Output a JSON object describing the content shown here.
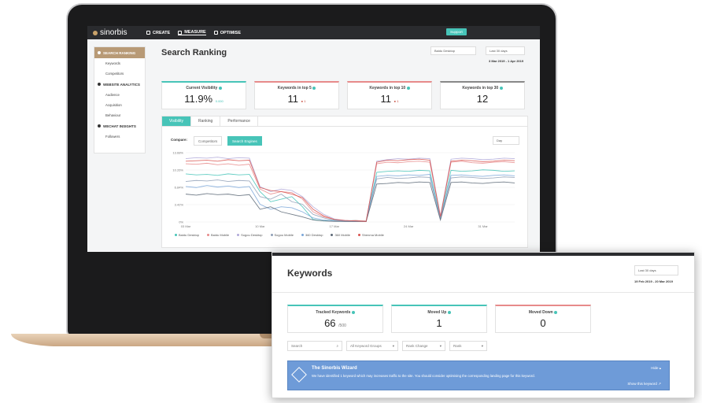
{
  "app": {
    "logo": "sinorbis",
    "nav": [
      {
        "label": "CREATE"
      },
      {
        "label": "MEASURE"
      },
      {
        "label": "OPTIMISE"
      }
    ],
    "support": "Support"
  },
  "sidebar": {
    "sections": [
      {
        "label": "SEARCH RANKING",
        "items": [
          "Keywords",
          "Competitors"
        ]
      },
      {
        "label": "WEBSITE ANALYTICS",
        "items": [
          "Audience",
          "Acquisition",
          "Behaviour"
        ]
      },
      {
        "label": "WECHAT INSIGHTS",
        "items": [
          "Followers"
        ]
      }
    ]
  },
  "search_ranking": {
    "title": "Search Ranking",
    "engine_select": "Baidu Desktop",
    "period_select": "Last 30 days",
    "date_range": "3 Mar 2019 - 1 Apr 2019",
    "cards": [
      {
        "label": "Current Visibility",
        "value": "11.9%",
        "change": "0.000"
      },
      {
        "label": "Keywords in top 5",
        "value": "11",
        "change": "1"
      },
      {
        "label": "Keywords in top 10",
        "value": "11",
        "change": "1"
      },
      {
        "label": "Keywords in top 30",
        "value": "12",
        "change": ""
      }
    ],
    "tabs": [
      "Visibility",
      "Ranking",
      "Performance"
    ],
    "compare_label": "Compare:",
    "compare_options": [
      "Competitors",
      "Search Engines"
    ],
    "granularity": "Day"
  },
  "chart_data": {
    "type": "line",
    "x_ticks": [
      "03 Mar",
      "10 Mar",
      "17 Mar",
      "24 Mar",
      "31 Mar"
    ],
    "y_ticks": [
      "0%",
      "3.42%",
      "6.84%",
      "10.26%",
      "13.68%"
    ],
    "ylim": [
      0,
      13.68
    ],
    "x": [
      1,
      2,
      3,
      4,
      5,
      6,
      7,
      8,
      9,
      10,
      11,
      12,
      13,
      14,
      15,
      16,
      17,
      18,
      19,
      20,
      21,
      22,
      23,
      24,
      25,
      26,
      27,
      28,
      29,
      30,
      31,
      32
    ],
    "series": [
      {
        "name": "Baidu Desktop",
        "color": "#47c4b8",
        "values": [
          9.5,
          9.3,
          9.4,
          9.2,
          9.5,
          9.3,
          9.4,
          6.0,
          4.0,
          4.5,
          5.0,
          3.0,
          0.5,
          0.2,
          0.4,
          0.2,
          0.3,
          0.1,
          9.8,
          10.0,
          10.1,
          10.0,
          10.2,
          10.1,
          0.8,
          10.2,
          10.0,
          10.1,
          10.3,
          10.2,
          10.0,
          10.1
        ]
      },
      {
        "name": "Baidu Mobile",
        "color": "#e78a8a",
        "values": [
          11.5,
          11.4,
          11.6,
          11.3,
          11.5,
          11.2,
          11.4,
          6.5,
          5.5,
          6.0,
          5.8,
          4.5,
          2.0,
          1.0,
          0.5,
          0.2,
          0.3,
          0.2,
          11.5,
          11.8,
          11.7,
          11.9,
          12.0,
          11.8,
          1.0,
          11.8,
          12.0,
          11.7,
          11.6,
          11.8,
          11.9,
          11.7
        ]
      },
      {
        "name": "Sogou Desktop",
        "color": "#b0a8d8",
        "values": [
          12.5,
          12.7,
          12.6,
          12.8,
          12.5,
          12.7,
          12.6,
          7.0,
          6.0,
          6.5,
          6.2,
          5.0,
          3.0,
          1.5,
          0.6,
          0.3,
          0.2,
          0.1,
          12.0,
          12.3,
          12.5,
          12.4,
          12.6,
          12.5,
          1.2,
          12.4,
          12.6,
          12.5,
          12.3,
          12.4,
          12.6,
          12.5
        ]
      },
      {
        "name": "Sogou Mobile",
        "color": "#8f9fb6",
        "values": [
          8.0,
          8.2,
          8.1,
          8.3,
          8.0,
          8.2,
          8.1,
          5.0,
          4.5,
          5.5,
          4.0,
          3.5,
          1.5,
          0.8,
          0.3,
          0.2,
          0.1,
          0.1,
          8.5,
          8.8,
          8.6,
          8.7,
          8.9,
          8.8,
          0.6,
          8.7,
          8.9,
          8.8,
          8.6,
          8.7,
          8.9,
          8.8
        ]
      },
      {
        "name": "360 Desktop",
        "color": "#7aa6d8",
        "values": [
          7.0,
          6.8,
          7.2,
          6.9,
          7.1,
          6.8,
          7.0,
          3.5,
          2.5,
          3.0,
          2.8,
          2.0,
          0.8,
          0.4,
          0.2,
          0.1,
          0.1,
          0.1,
          9.0,
          9.2,
          9.1,
          9.3,
          9.2,
          9.4,
          0.5,
          9.2,
          9.3,
          9.1,
          9.0,
          9.2,
          9.3,
          9.1
        ]
      },
      {
        "name": "360 Mobile",
        "color": "#5b6775",
        "values": [
          5.5,
          5.3,
          5.6,
          5.4,
          5.5,
          5.2,
          5.4,
          2.5,
          3.0,
          2.0,
          1.5,
          1.0,
          0.4,
          0.2,
          0.1,
          0.1,
          0.1,
          0.1,
          7.5,
          7.6,
          7.8,
          7.7,
          7.9,
          7.8,
          0.4,
          7.8,
          7.9,
          7.7,
          7.6,
          7.8,
          7.9,
          7.7
        ]
      },
      {
        "name": "Shenma Mobile",
        "color": "#d9534f",
        "values": [
          12.0,
          12.1,
          12.2,
          12.0,
          12.3,
          12.1,
          12.2,
          6.8,
          6.2,
          6.0,
          5.5,
          4.8,
          2.5,
          1.2,
          0.5,
          0.3,
          0.2,
          0.1,
          11.8,
          12.2,
          12.1,
          12.3,
          12.4,
          12.2,
          1.1,
          12.0,
          12.2,
          12.1,
          11.9,
          12.0,
          12.2,
          12.1
        ]
      }
    ]
  },
  "keywords": {
    "title": "Keywords",
    "period_select": "Last 30 days",
    "date_range": "19 Feb 2019 - 20 Mar 2019",
    "cards": [
      {
        "label": "Tracked Keywords",
        "value": "66",
        "of": "/500"
      },
      {
        "label": "Moved Up",
        "value": "1"
      },
      {
        "label": "Moved Down",
        "value": "0"
      }
    ],
    "filters": {
      "search": "Search",
      "groups": "All Keyword Groups",
      "change": "Rank Change",
      "rank": "Rank"
    },
    "wizard": {
      "title": "The Sinorbis Wizard",
      "text": "We have identified 1 keyword which may increases traffic to the site. You should consider optimising the corresponding landing page for this keyword.",
      "hide": "Hide",
      "show": "Show this keyword"
    }
  }
}
